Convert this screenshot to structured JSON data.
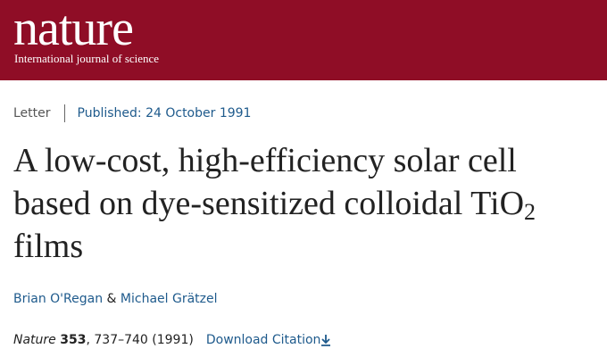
{
  "header": {
    "logo": "nature",
    "tagline": "International journal of science"
  },
  "meta": {
    "article_type": "Letter",
    "published": "Published: 24 October 1991"
  },
  "title": {
    "line1": "A low-cost, high-efficiency solar cell",
    "line2": "based on dye-sensitized colloidal TiO",
    "subscript": "2",
    "line3": "films"
  },
  "authors": {
    "first": "Brian O'Regan",
    "joiner": "&",
    "second": "Michael Grätzel"
  },
  "citation": {
    "journal": "Nature",
    "volume": "353",
    "rest": ", 737–740 (1991)",
    "download": "Download Citation"
  }
}
